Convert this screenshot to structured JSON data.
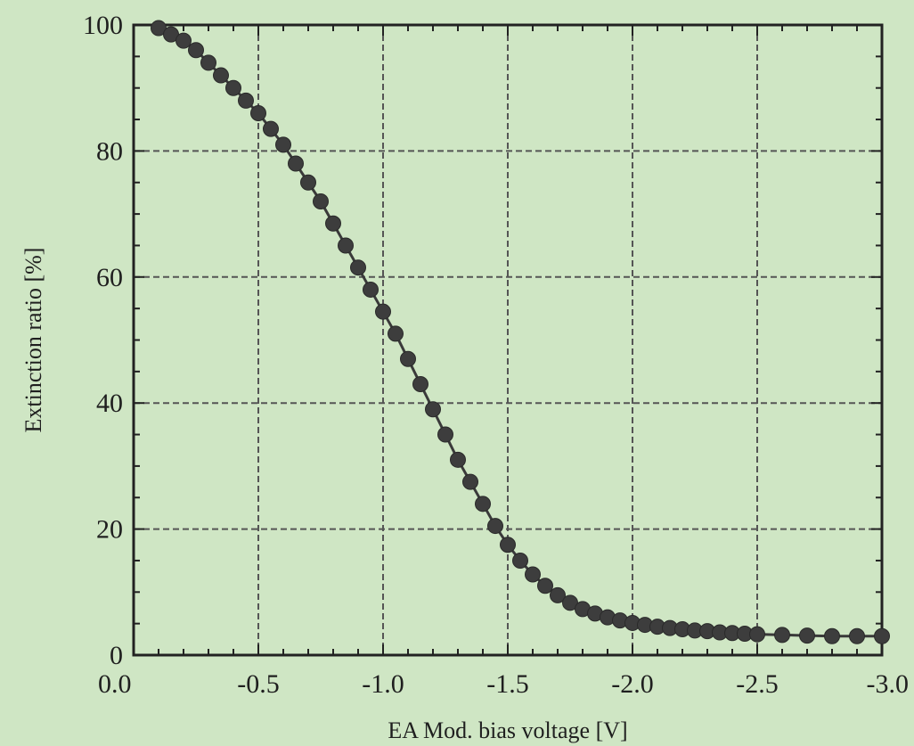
{
  "chart_data": {
    "type": "scatter",
    "xlabel": "EA Mod. bias voltage [V]",
    "ylabel": "Extinction ratio [%]",
    "xlim": [
      0.0,
      -3.0
    ],
    "ylim": [
      0,
      100
    ],
    "x_ticks": [
      "0.0",
      "-0.5",
      "-1.0",
      "-1.5",
      "-2.0",
      "-2.5",
      "-3.0"
    ],
    "y_ticks": [
      "0",
      "20",
      "40",
      "60",
      "80",
      "100"
    ],
    "grid": true,
    "series": [
      {
        "marker": "circle",
        "connected": true,
        "x": [
          -0.1,
          -0.15,
          -0.2,
          -0.25,
          -0.3,
          -0.35,
          -0.4,
          -0.45,
          -0.5,
          -0.55,
          -0.6,
          -0.65,
          -0.7,
          -0.75,
          -0.8,
          -0.85,
          -0.9,
          -0.95,
          -1.0,
          -1.05,
          -1.1,
          -1.15,
          -1.2,
          -1.25,
          -1.3,
          -1.35,
          -1.4,
          -1.45,
          -1.5,
          -1.55,
          -1.6,
          -1.65,
          -1.7,
          -1.75,
          -1.8,
          -1.85,
          -1.9,
          -1.95,
          -2.0,
          -2.05,
          -2.1,
          -2.15,
          -2.2,
          -2.25,
          -2.3,
          -2.35,
          -2.4,
          -2.45,
          -2.5,
          -2.6,
          -2.7,
          -2.8,
          -2.9,
          -3.0
        ],
        "y": [
          99.5,
          98.5,
          97.5,
          96,
          94,
          92,
          90,
          88,
          86,
          83.5,
          81,
          78,
          75,
          72,
          68.5,
          65,
          61.5,
          58,
          54.5,
          51,
          47,
          43,
          39,
          35,
          31,
          27.5,
          24,
          20.5,
          17.5,
          15,
          12.8,
          11,
          9.5,
          8.3,
          7.3,
          6.6,
          6.0,
          5.5,
          5.1,
          4.8,
          4.5,
          4.3,
          4.1,
          3.9,
          3.8,
          3.6,
          3.5,
          3.4,
          3.3,
          3.2,
          3.1,
          3.0,
          3.0,
          3.0
        ]
      }
    ]
  }
}
